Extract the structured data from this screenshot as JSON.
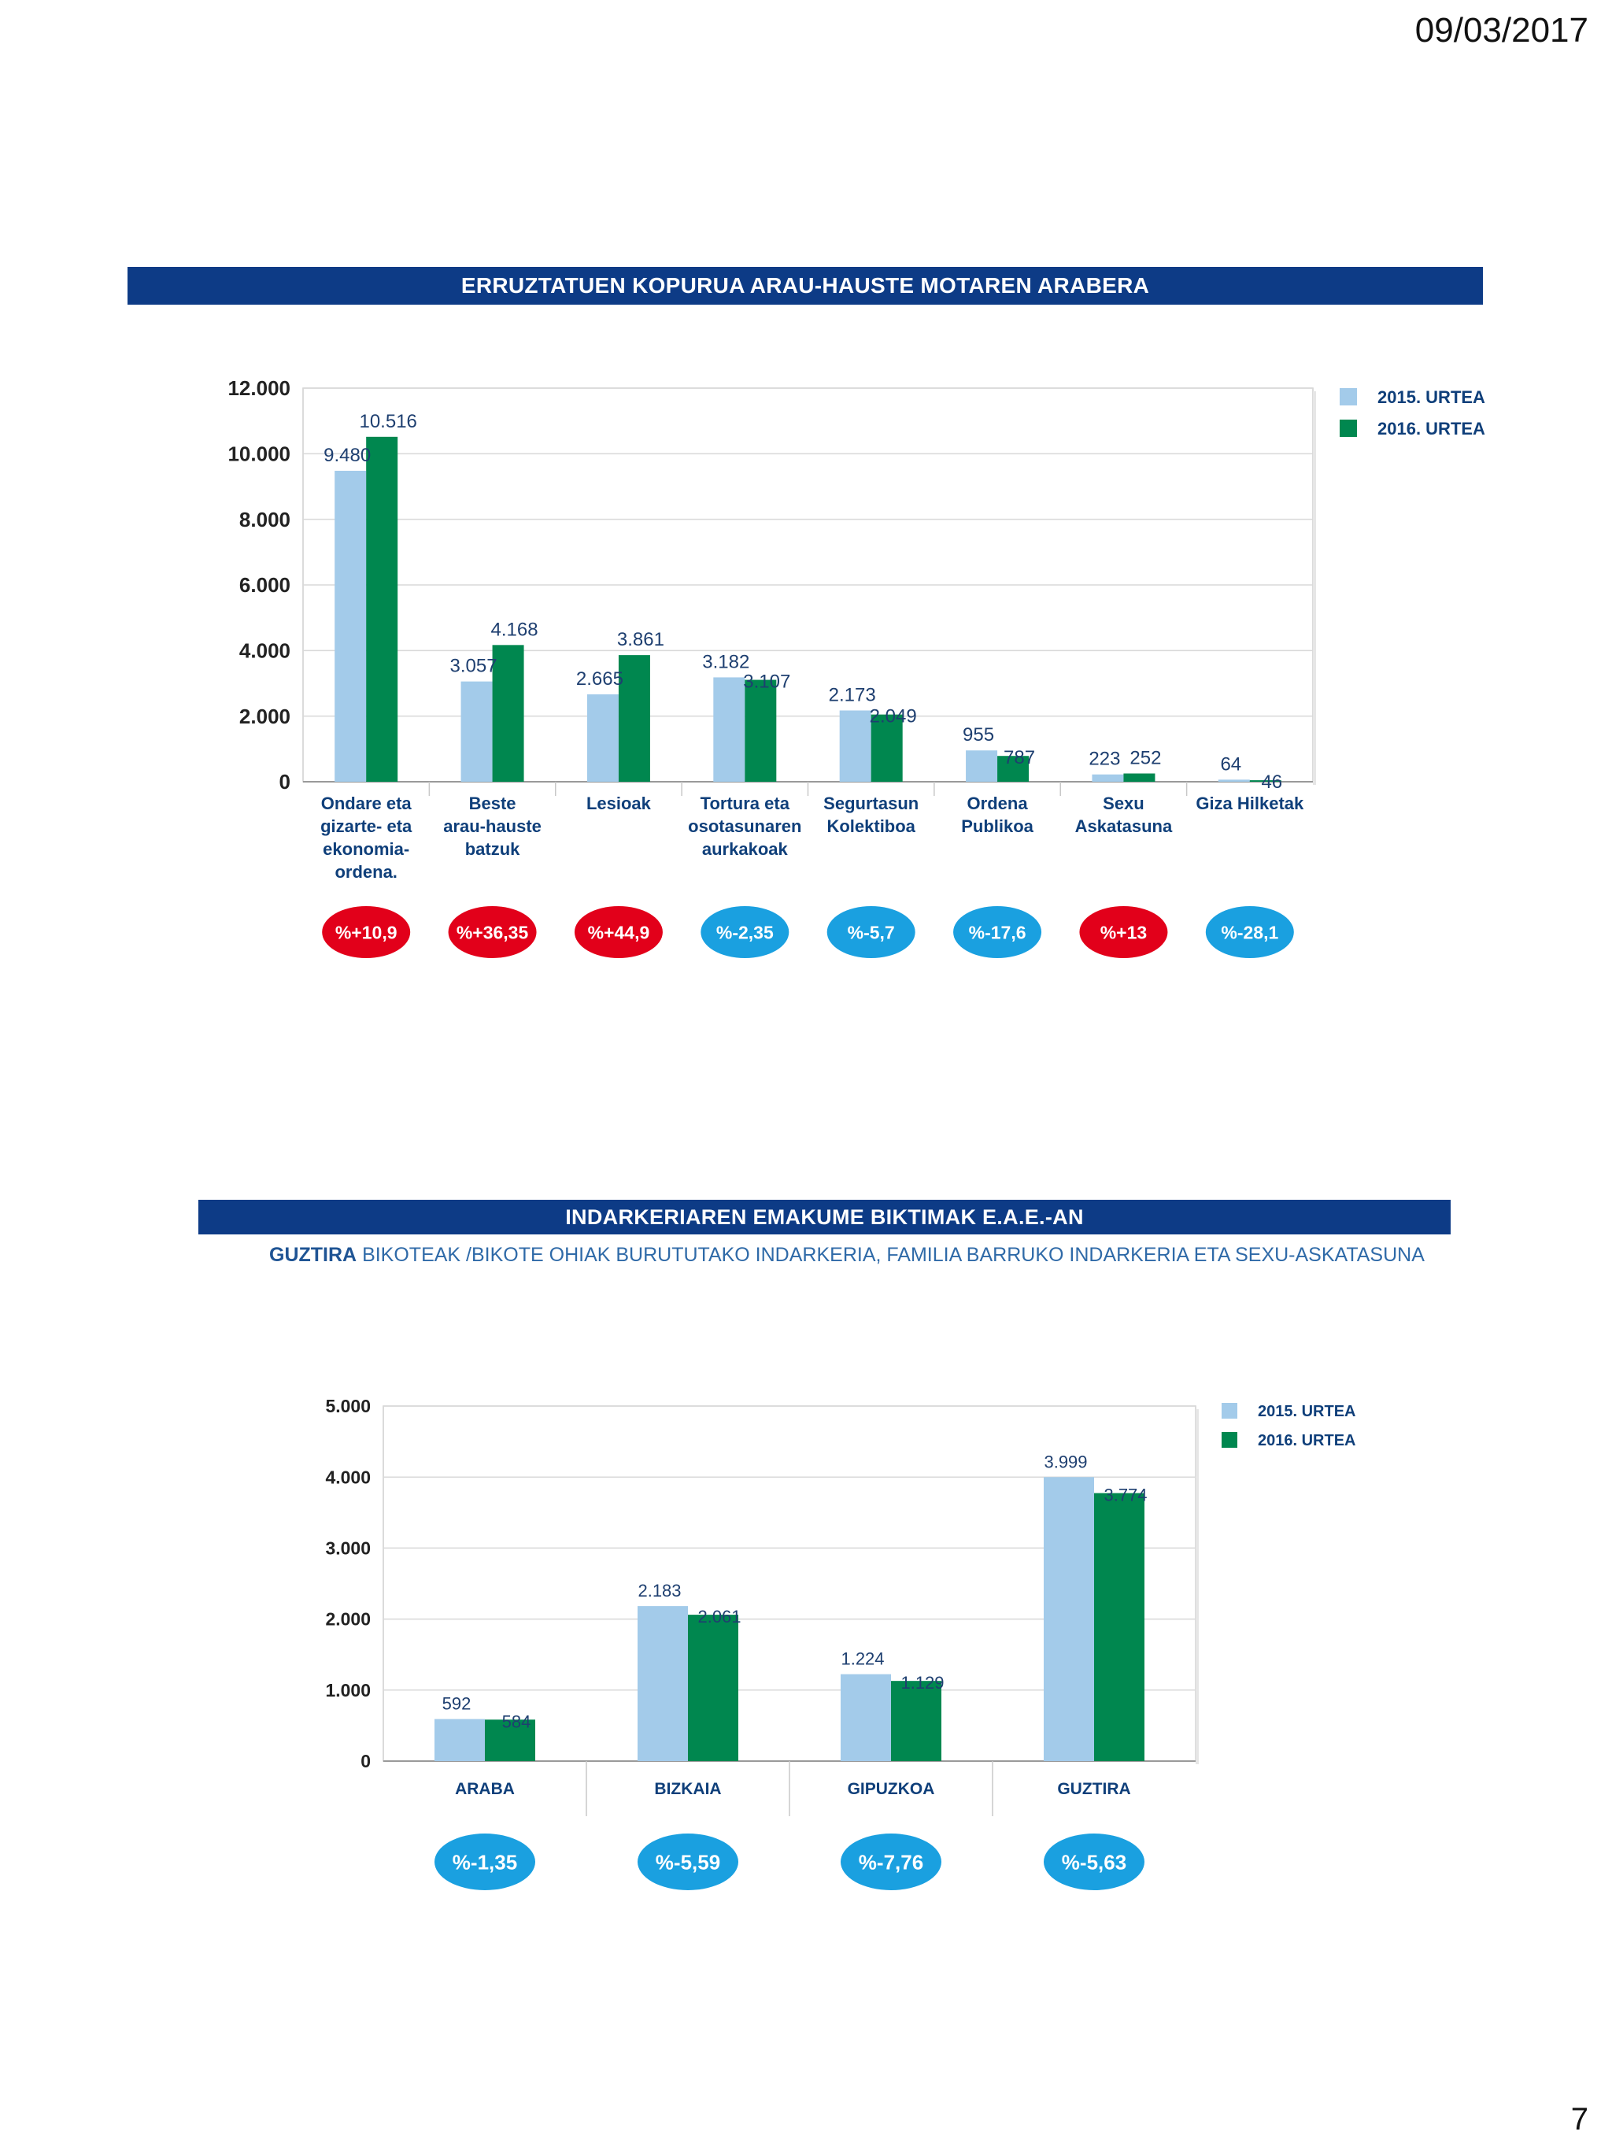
{
  "header": {
    "date": "09/03/2017"
  },
  "footer": {
    "page_number": "7"
  },
  "chart1": {
    "banner_title": "ERRUZTATUEN KOPURUA ARAU-HAUSTE MOTAREN ARABERA"
  },
  "chart2": {
    "banner_title": "INDARKERIAREN EMAKUME BIKTIMAK E.A.E.-AN",
    "subtitle_bold": "GUZTIRA",
    "subtitle_rest": "BIKOTEAK /BIKOTE OHIAK BURUTUTAKO INDARKERIA, FAMILIA BARRUKO INDARKERIA ETA SEXU-ASKATASUNA"
  },
  "colors": {
    "series_2015": "#a3cbea",
    "series_2016": "#00874f",
    "pill_increase": "#e2001a",
    "pill_decrease": "#1aa0e0",
    "banner": "#0d3b86",
    "grid": "#d9d9d9"
  },
  "chart_data": [
    {
      "type": "bar",
      "title": "ERRUZTATUEN KOPURUA ARAU-HAUSTE MOTAREN ARABERA",
      "categories": [
        [
          "Ondare eta",
          "gizarte- eta",
          "ekonomia-",
          "ordena."
        ],
        [
          "Beste",
          "arau-hauste",
          "batzuk"
        ],
        [
          "Lesioak"
        ],
        [
          "Tortura eta",
          "osotasunaren",
          "aurkakoak"
        ],
        [
          "Segurtasun",
          "Kolektiboa"
        ],
        [
          "Ordena",
          "Publikoa"
        ],
        [
          "Sexu",
          "Askatasuna"
        ],
        [
          "Giza Hilketak"
        ]
      ],
      "series": [
        {
          "name": "2015. URTEA",
          "values": [
            9480,
            3057,
            2665,
            3182,
            2173,
            955,
            223,
            64
          ],
          "labels": [
            "9.480",
            "3.057",
            "2.665",
            "3.182",
            "2.173",
            "955",
            "223",
            "64"
          ]
        },
        {
          "name": "2016. URTEA",
          "values": [
            10516,
            4168,
            3861,
            3107,
            2049,
            787,
            252,
            46
          ],
          "labels": [
            "10.516",
            "4.168",
            "3.861",
            "3.107",
            "2.049",
            "787",
            "252",
            "46"
          ]
        }
      ],
      "changes": [
        "%+10,9",
        "%+36,35",
        "%+44,9",
        "%-2,35",
        "%-5,7",
        "%-17,6",
        "%+13",
        "%-28,1"
      ],
      "change_direction": [
        "up",
        "up",
        "up",
        "down",
        "down",
        "down",
        "up",
        "down"
      ],
      "ylim": [
        0,
        12000
      ],
      "yticks": [
        0,
        2000,
        4000,
        6000,
        8000,
        10000,
        12000
      ],
      "ytick_labels": [
        "0",
        "2.000",
        "4.000",
        "6.000",
        "8.000",
        "10.000",
        "12.000"
      ],
      "xlabel": "",
      "ylabel": "",
      "legend": "top-right"
    },
    {
      "type": "bar",
      "title": "INDARKERIAREN EMAKUME BIKTIMAK E.A.E.-AN",
      "categories": [
        [
          "ARABA"
        ],
        [
          "BIZKAIA"
        ],
        [
          "GIPUZKOA"
        ],
        [
          "GUZTIRA"
        ]
      ],
      "series": [
        {
          "name": "2015. URTEA",
          "values": [
            592,
            2183,
            1224,
            3999
          ],
          "labels": [
            "592",
            "2.183",
            "1.224",
            "3.999"
          ]
        },
        {
          "name": "2016. URTEA",
          "values": [
            584,
            2061,
            1129,
            3774
          ],
          "labels": [
            "584",
            "2.061",
            "1.129",
            "3.774"
          ]
        }
      ],
      "changes": [
        "%-1,35",
        "%-5,59",
        "%-7,76",
        "%-5,63"
      ],
      "change_direction": [
        "down",
        "down",
        "down",
        "down"
      ],
      "ylim": [
        0,
        5000
      ],
      "yticks": [
        0,
        1000,
        2000,
        3000,
        4000,
        5000
      ],
      "ytick_labels": [
        "0",
        "1.000",
        "2.000",
        "3.000",
        "4.000",
        "5.000"
      ],
      "xlabel": "",
      "ylabel": "",
      "legend": "top-right"
    }
  ]
}
